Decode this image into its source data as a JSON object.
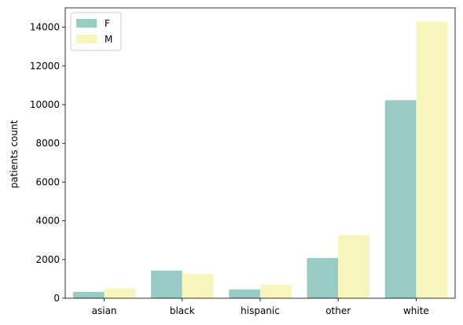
{
  "chart_data": {
    "type": "bar",
    "categories": [
      "asian",
      "black",
      "hispanic",
      "other",
      "white"
    ],
    "series": [
      {
        "name": "F",
        "color": "#98cbc3",
        "values": [
          330,
          1430,
          460,
          2080,
          10230
        ]
      },
      {
        "name": "M",
        "color": "#f6f6bc",
        "values": [
          500,
          1270,
          700,
          3260,
          14290
        ]
      }
    ],
    "xlabel": "",
    "ylabel": "patients count",
    "ylim": [
      0,
      15000
    ],
    "yticks": [
      0,
      2000,
      4000,
      6000,
      8000,
      10000,
      12000,
      14000
    ],
    "grid": false,
    "legend_position": "top-left"
  }
}
